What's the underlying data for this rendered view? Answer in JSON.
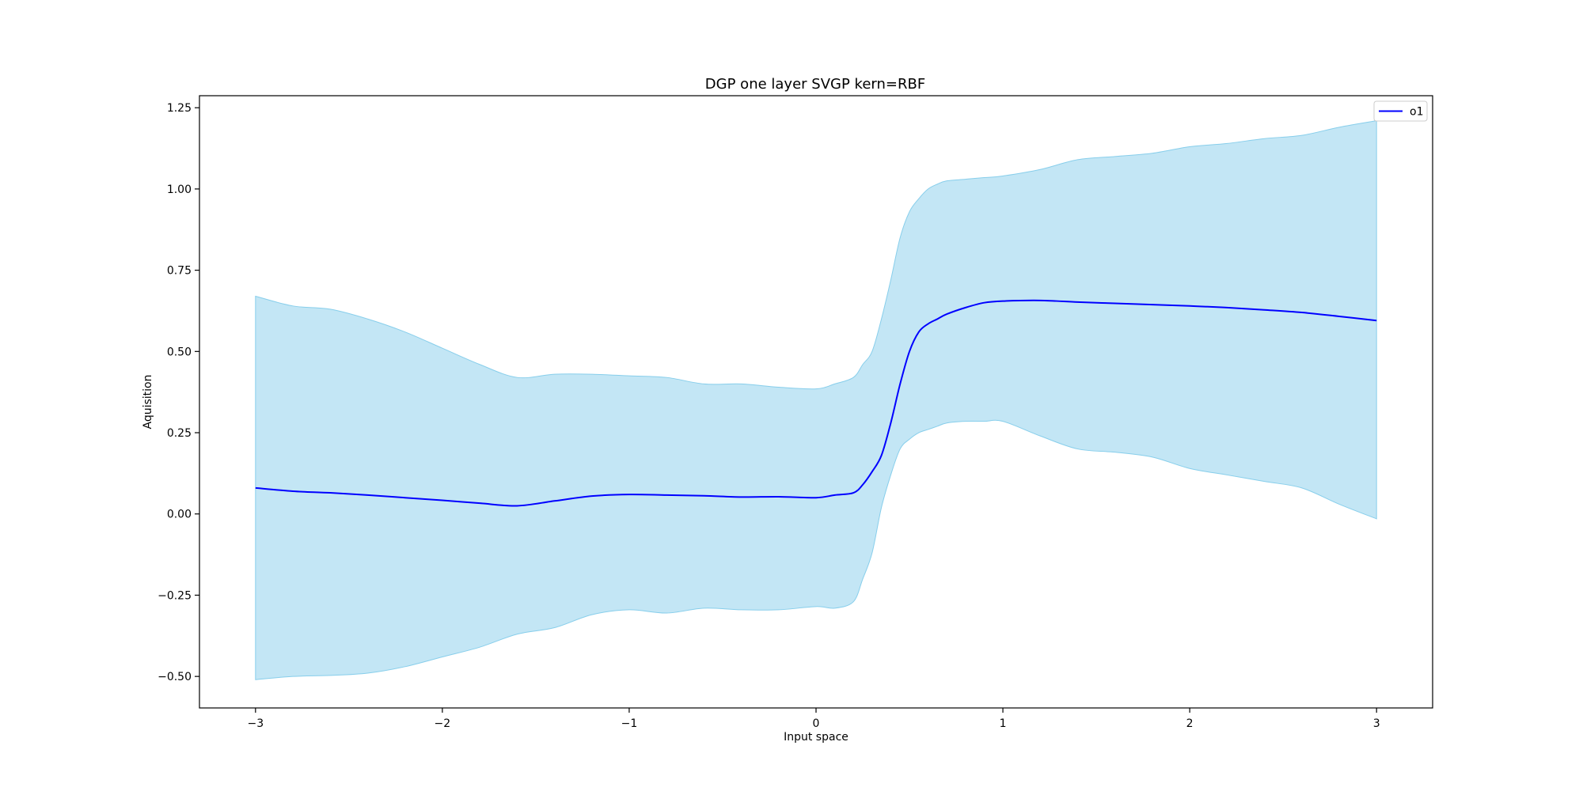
{
  "chart_data": {
    "type": "line",
    "title": "DGP one layer SVGP kern=RBF",
    "xlabel": "Input space",
    "ylabel": "Aquisition",
    "xlim": [
      -3.3,
      3.3
    ],
    "ylim": [
      -0.597,
      1.287
    ],
    "xticks": [
      -3,
      -2,
      -1,
      0,
      1,
      2,
      3
    ],
    "xtick_labels": [
      "−3",
      "−2",
      "−1",
      "0",
      "1",
      "2",
      "3"
    ],
    "yticks": [
      -0.5,
      -0.25,
      0,
      0.25,
      0.5,
      0.75,
      1.0,
      1.25
    ],
    "ytick_labels": [
      "−0.50",
      "−0.25",
      "0.00",
      "0.25",
      "0.50",
      "0.75",
      "1.00",
      "1.25"
    ],
    "legend": {
      "position": "top-right",
      "entries": [
        "o1"
      ]
    },
    "grid": false,
    "colors": {
      "line": "#0000ff",
      "band": "#87ceeb"
    },
    "series": [
      {
        "name": "o1",
        "x": [
          -3.0,
          -2.8,
          -2.6,
          -2.4,
          -2.2,
          -2.0,
          -1.8,
          -1.6,
          -1.4,
          -1.2,
          -1.0,
          -0.8,
          -0.6,
          -0.4,
          -0.2,
          0.0,
          0.1,
          0.2,
          0.25,
          0.3,
          0.35,
          0.4,
          0.45,
          0.5,
          0.55,
          0.6,
          0.65,
          0.7,
          0.8,
          0.9,
          1.0,
          1.2,
          1.4,
          1.6,
          1.8,
          2.0,
          2.2,
          2.4,
          2.6,
          2.8,
          3.0
        ],
        "y": [
          0.08,
          0.07,
          0.065,
          0.058,
          0.05,
          0.042,
          0.033,
          0.025,
          0.04,
          0.055,
          0.06,
          0.058,
          0.056,
          0.052,
          0.053,
          0.05,
          0.058,
          0.065,
          0.09,
          0.13,
          0.18,
          0.28,
          0.4,
          0.5,
          0.56,
          0.585,
          0.6,
          0.615,
          0.635,
          0.65,
          0.655,
          0.657,
          0.652,
          0.648,
          0.644,
          0.64,
          0.635,
          0.628,
          0.62,
          0.608,
          0.595
        ],
        "upper": [
          0.67,
          0.64,
          0.63,
          0.6,
          0.56,
          0.51,
          0.46,
          0.42,
          0.43,
          0.43,
          0.425,
          0.42,
          0.4,
          0.4,
          0.39,
          0.385,
          0.4,
          0.42,
          0.46,
          0.5,
          0.6,
          0.72,
          0.85,
          0.93,
          0.97,
          1.0,
          1.015,
          1.025,
          1.03,
          1.035,
          1.04,
          1.06,
          1.09,
          1.1,
          1.11,
          1.13,
          1.14,
          1.155,
          1.165,
          1.19,
          1.21
        ],
        "lower": [
          -0.51,
          -0.5,
          -0.497,
          -0.49,
          -0.47,
          -0.44,
          -0.41,
          -0.37,
          -0.35,
          -0.31,
          -0.295,
          -0.305,
          -0.29,
          -0.295,
          -0.295,
          -0.285,
          -0.29,
          -0.27,
          -0.2,
          -0.12,
          0.02,
          0.12,
          0.2,
          0.23,
          0.25,
          0.26,
          0.27,
          0.28,
          0.285,
          0.285,
          0.285,
          0.24,
          0.2,
          0.19,
          0.175,
          0.14,
          0.12,
          0.1,
          0.08,
          0.03,
          -0.015
        ]
      }
    ]
  }
}
